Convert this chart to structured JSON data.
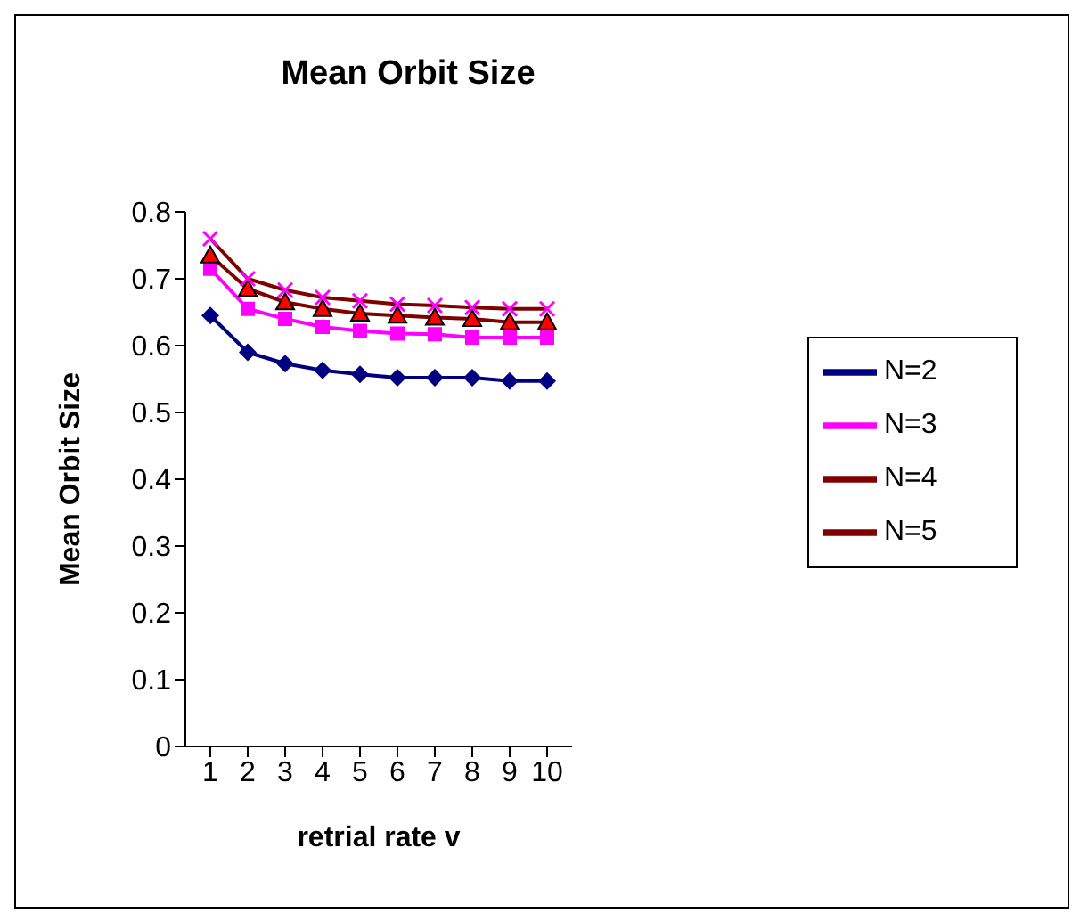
{
  "chart_data": {
    "type": "line",
    "title": "Mean Orbit Size",
    "xlabel": "retrial rate v",
    "ylabel": "Mean Orbit Size",
    "categories": [
      "1",
      "2",
      "3",
      "4",
      "5",
      "6",
      "7",
      "8",
      "9",
      "10"
    ],
    "series": [
      {
        "name": "N=2",
        "color": "#000080",
        "marker": "diamond",
        "values": [
          0.645,
          0.59,
          0.573,
          0.563,
          0.557,
          0.552,
          0.552,
          0.552,
          0.547,
          0.547
        ]
      },
      {
        "name": "N=3",
        "color": "#ff00ff",
        "marker": "square",
        "values": [
          0.715,
          0.655,
          0.64,
          0.628,
          0.622,
          0.618,
          0.617,
          0.612,
          0.612,
          0.612
        ]
      },
      {
        "name": "N=4",
        "color": "#800000",
        "marker": "triangle",
        "values": [
          0.735,
          0.685,
          0.665,
          0.655,
          0.648,
          0.645,
          0.642,
          0.64,
          0.635,
          0.635
        ]
      },
      {
        "name": "N=5",
        "color": "#800000",
        "marker": "cross",
        "values": [
          0.76,
          0.7,
          0.683,
          0.672,
          0.667,
          0.662,
          0.66,
          0.657,
          0.655,
          0.655
        ]
      }
    ],
    "ylim": [
      0,
      0.8
    ],
    "yticks": [
      0,
      0.1,
      0.2,
      0.3,
      0.4,
      0.5,
      0.6,
      0.7,
      0.8
    ],
    "grid": false,
    "legend": "right",
    "line_style": "solid"
  }
}
